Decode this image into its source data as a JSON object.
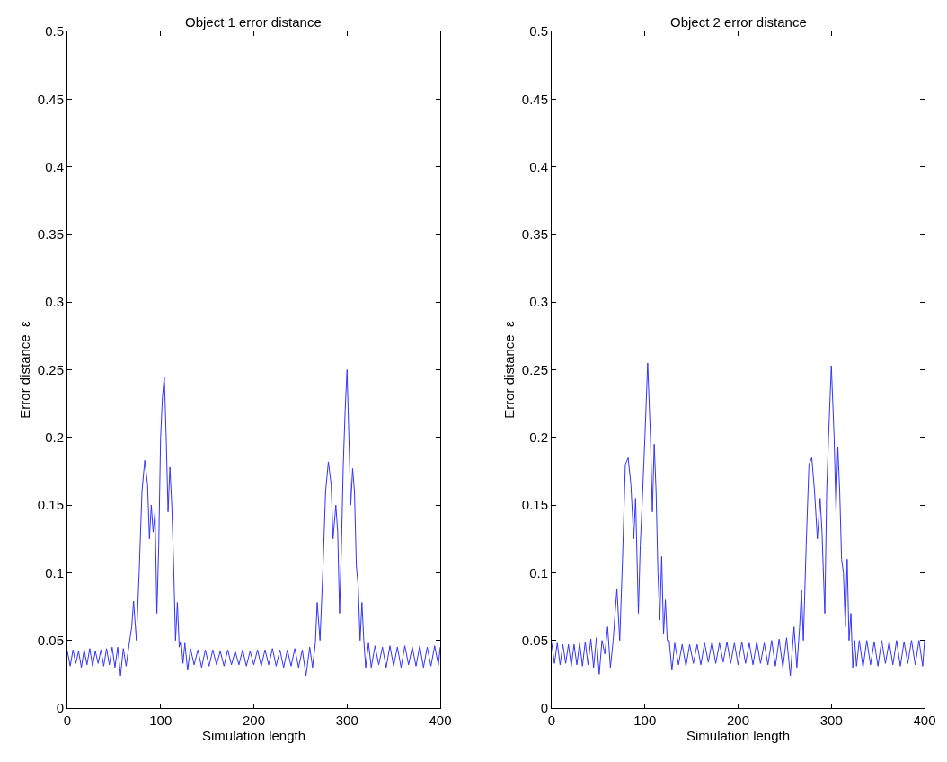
{
  "chart_data": [
    {
      "type": "line",
      "title": "Object 1 error distance",
      "xlabel": "Simulation length",
      "ylabel": "Error distance  ε",
      "xlim": [
        0,
        400
      ],
      "xticks": [
        0,
        100,
        200,
        300,
        400
      ],
      "ylim": [
        0,
        0.5
      ],
      "yticks": [
        0,
        0.05,
        0.1,
        0.15,
        0.2,
        0.25,
        0.3,
        0.35,
        0.4,
        0.45,
        0.5
      ],
      "marker": "none",
      "line_style": "solid",
      "series": [
        {
          "color": "#3333ff",
          "x": [
            0,
            3,
            6,
            9,
            12,
            15,
            18,
            21,
            24,
            27,
            30,
            33,
            36,
            39,
            42,
            45,
            48,
            51,
            54,
            57,
            60,
            63,
            66,
            69,
            71,
            74,
            77,
            80,
            83,
            86,
            88,
            90,
            92,
            94,
            96,
            98,
            100,
            102,
            104,
            106,
            108,
            110,
            112,
            114,
            116,
            118,
            120,
            122,
            124,
            126,
            129,
            132,
            136,
            140,
            144,
            148,
            152,
            156,
            160,
            164,
            168,
            172,
            176,
            180,
            184,
            188,
            192,
            196,
            200,
            204,
            208,
            212,
            216,
            220,
            224,
            228,
            232,
            236,
            240,
            244,
            248,
            252,
            256,
            260,
            263,
            266,
            268,
            271,
            274,
            277,
            280,
            283,
            285,
            288,
            290,
            292,
            294,
            296,
            298,
            300,
            302,
            304,
            306,
            308,
            310,
            312,
            314,
            316,
            318,
            320,
            323,
            326,
            330,
            334,
            338,
            342,
            346,
            350,
            354,
            358,
            362,
            366,
            370,
            374,
            378,
            382,
            386,
            390,
            394,
            398,
            400
          ],
          "values": [
            0.042,
            0.031,
            0.043,
            0.033,
            0.042,
            0.03,
            0.043,
            0.032,
            0.044,
            0.031,
            0.042,
            0.033,
            0.043,
            0.031,
            0.044,
            0.032,
            0.045,
            0.03,
            0.045,
            0.024,
            0.044,
            0.031,
            0.046,
            0.06,
            0.079,
            0.05,
            0.1,
            0.16,
            0.183,
            0.165,
            0.125,
            0.15,
            0.13,
            0.145,
            0.07,
            0.12,
            0.2,
            0.23,
            0.245,
            0.2,
            0.145,
            0.178,
            0.15,
            0.105,
            0.05,
            0.078,
            0.045,
            0.05,
            0.033,
            0.048,
            0.028,
            0.044,
            0.032,
            0.043,
            0.03,
            0.043,
            0.031,
            0.043,
            0.032,
            0.042,
            0.031,
            0.043,
            0.032,
            0.042,
            0.032,
            0.043,
            0.031,
            0.042,
            0.032,
            0.043,
            0.031,
            0.043,
            0.032,
            0.044,
            0.031,
            0.043,
            0.03,
            0.043,
            0.031,
            0.044,
            0.03,
            0.043,
            0.024,
            0.045,
            0.03,
            0.048,
            0.078,
            0.05,
            0.1,
            0.16,
            0.182,
            0.165,
            0.125,
            0.15,
            0.13,
            0.07,
            0.12,
            0.18,
            0.22,
            0.25,
            0.2,
            0.15,
            0.177,
            0.16,
            0.105,
            0.09,
            0.05,
            0.078,
            0.05,
            0.03,
            0.048,
            0.03,
            0.046,
            0.032,
            0.045,
            0.03,
            0.046,
            0.031,
            0.045,
            0.03,
            0.046,
            0.032,
            0.045,
            0.031,
            0.046,
            0.03,
            0.045,
            0.031,
            0.046,
            0.032,
            0.045
          ]
        }
      ]
    },
    {
      "type": "line",
      "title": "Object 2 error distance",
      "xlabel": "Simulation length",
      "ylabel": "Error distance  ε",
      "xlim": [
        0,
        400
      ],
      "xticks": [
        0,
        100,
        200,
        300,
        400
      ],
      "ylim": [
        0,
        0.5
      ],
      "yticks": [
        0,
        0.05,
        0.1,
        0.15,
        0.2,
        0.25,
        0.3,
        0.35,
        0.4,
        0.45,
        0.5
      ],
      "marker": "none",
      "line_style": "solid",
      "series": [
        {
          "color": "#3333ff",
          "x": [
            0,
            3,
            6,
            9,
            12,
            15,
            18,
            21,
            24,
            27,
            30,
            33,
            36,
            39,
            42,
            45,
            48,
            51,
            54,
            57,
            60,
            63,
            66,
            68,
            70,
            73,
            76,
            79,
            82,
            85,
            88,
            90,
            93,
            95,
            97,
            100,
            103,
            106,
            108,
            110,
            112,
            114,
            116,
            118,
            120,
            122,
            124,
            126,
            129,
            132,
            136,
            140,
            144,
            148,
            152,
            156,
            160,
            164,
            168,
            172,
            176,
            180,
            184,
            188,
            192,
            196,
            200,
            204,
            208,
            212,
            216,
            220,
            224,
            228,
            232,
            236,
            240,
            244,
            248,
            252,
            256,
            260,
            263,
            266,
            268,
            270,
            273,
            276,
            279,
            282,
            285,
            288,
            290,
            293,
            295,
            297,
            300,
            303,
            305,
            307,
            309,
            311,
            313,
            315,
            317,
            319,
            321,
            323,
            325,
            327,
            330,
            334,
            338,
            342,
            346,
            350,
            354,
            358,
            362,
            366,
            370,
            374,
            378,
            382,
            386,
            390,
            394,
            398,
            400
          ],
          "values": [
            0.048,
            0.033,
            0.048,
            0.032,
            0.047,
            0.033,
            0.047,
            0.031,
            0.047,
            0.032,
            0.048,
            0.031,
            0.049,
            0.032,
            0.051,
            0.03,
            0.052,
            0.025,
            0.05,
            0.04,
            0.06,
            0.03,
            0.05,
            0.07,
            0.088,
            0.05,
            0.11,
            0.18,
            0.185,
            0.165,
            0.125,
            0.155,
            0.07,
            0.12,
            0.15,
            0.2,
            0.255,
            0.2,
            0.145,
            0.195,
            0.16,
            0.1,
            0.065,
            0.112,
            0.055,
            0.08,
            0.05,
            0.05,
            0.028,
            0.048,
            0.032,
            0.047,
            0.031,
            0.047,
            0.033,
            0.047,
            0.032,
            0.048,
            0.034,
            0.049,
            0.033,
            0.048,
            0.034,
            0.049,
            0.033,
            0.048,
            0.032,
            0.049,
            0.033,
            0.048,
            0.032,
            0.049,
            0.033,
            0.048,
            0.032,
            0.05,
            0.031,
            0.051,
            0.03,
            0.052,
            0.024,
            0.06,
            0.03,
            0.06,
            0.087,
            0.05,
            0.12,
            0.18,
            0.185,
            0.16,
            0.125,
            0.155,
            0.13,
            0.07,
            0.16,
            0.2,
            0.253,
            0.2,
            0.145,
            0.193,
            0.16,
            0.11,
            0.1,
            0.06,
            0.11,
            0.05,
            0.07,
            0.03,
            0.05,
            0.031,
            0.05,
            0.03,
            0.05,
            0.032,
            0.049,
            0.031,
            0.05,
            0.033,
            0.049,
            0.032,
            0.05,
            0.031,
            0.049,
            0.033,
            0.05,
            0.032,
            0.05,
            0.031,
            0.05
          ]
        }
      ]
    }
  ]
}
